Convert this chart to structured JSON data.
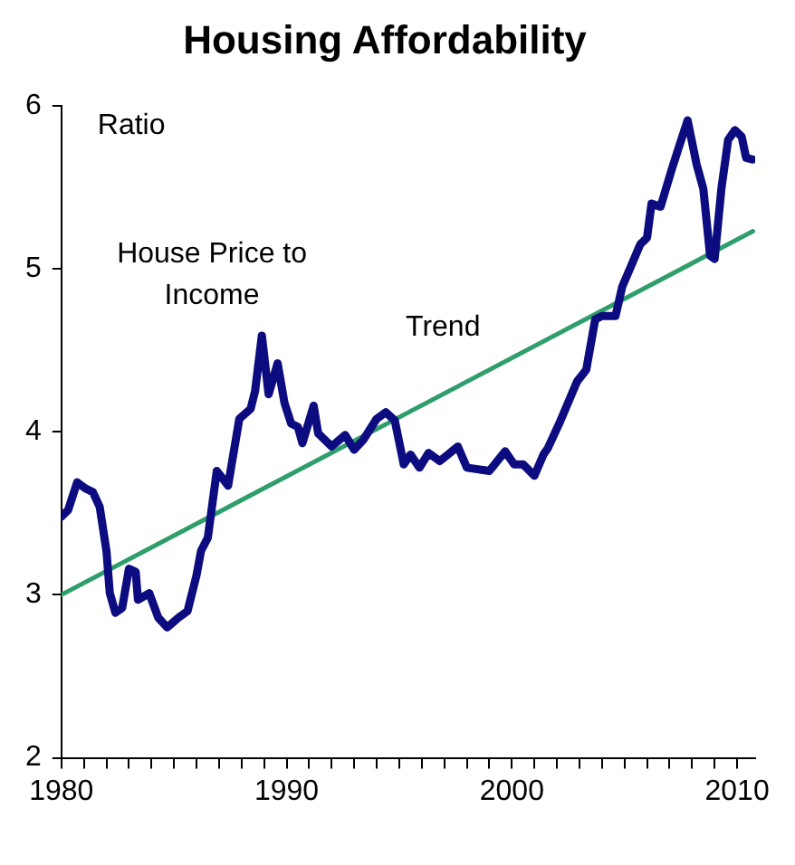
{
  "chart_data": {
    "type": "line",
    "title": "Housing Affordability",
    "ylabel": "Ratio",
    "xlim": [
      1980,
      2010.8
    ],
    "xticks": [
      1980,
      {
        "value": 1981,
        "label": null
      },
      {
        "value": 1982,
        "label": null
      },
      {
        "value": 1983,
        "label": null
      },
      {
        "value": 1984,
        "label": null
      },
      {
        "value": 1985,
        "label": null
      },
      {
        "value": 1986,
        "label": null
      },
      {
        "value": 1987,
        "label": null
      },
      {
        "value": 1988,
        "label": null
      },
      {
        "value": 1989,
        "label": null
      },
      1990,
      {
        "value": 1991,
        "label": null
      },
      {
        "value": 1992,
        "label": null
      },
      {
        "value": 1993,
        "label": null
      },
      {
        "value": 1994,
        "label": null
      },
      {
        "value": 1995,
        "label": null
      },
      {
        "value": 1996,
        "label": null
      },
      {
        "value": 1997,
        "label": null
      },
      {
        "value": 1998,
        "label": null
      },
      {
        "value": 1999,
        "label": null
      },
      2000,
      {
        "value": 2001,
        "label": null
      },
      {
        "value": 2002,
        "label": null
      },
      {
        "value": 2003,
        "label": null
      },
      {
        "value": 2004,
        "label": null
      },
      {
        "value": 2005,
        "label": null
      },
      {
        "value": 2006,
        "label": null
      },
      {
        "value": 2007,
        "label": null
      },
      {
        "value": 2008,
        "label": null
      },
      {
        "value": 2009,
        "label": null
      },
      2010
    ],
    "ylim": [
      2,
      6
    ],
    "yticks": [
      2,
      3,
      4,
      5,
      6
    ],
    "grid": false,
    "legend": false,
    "marker": "none",
    "series": [
      {
        "name": "House Price to Income",
        "color": "#0c0c80",
        "x": [
          1980.0,
          1980.3,
          1980.7,
          1981.1,
          1981.4,
          1981.7,
          1982.0,
          1982.15,
          1982.4,
          1982.7,
          1983.0,
          1983.3,
          1983.4,
          1983.9,
          1984.3,
          1984.7,
          1985.2,
          1985.6,
          1986.0,
          1986.2,
          1986.5,
          1986.9,
          1987.4,
          1987.9,
          1988.4,
          1988.6,
          1988.9,
          1989.2,
          1989.6,
          1989.9,
          1990.2,
          1990.5,
          1990.7,
          1991.2,
          1991.4,
          1992.0,
          1992.6,
          1993.0,
          1993.4,
          1994.0,
          1994.4,
          1994.8,
          1995.2,
          1995.5,
          1995.9,
          1996.3,
          1996.8,
          1997.6,
          1998.0,
          1999.0,
          1999.7,
          2000.1,
          2000.5,
          2001.0,
          2001.4,
          2001.6,
          2002.1,
          2002.5,
          2002.9,
          2003.3,
          2003.7,
          2004.0,
          2004.6,
          2004.9,
          2005.3,
          2005.7,
          2006.0,
          2006.2,
          2006.6,
          2007.1,
          2007.4,
          2007.8,
          2008.2,
          2008.5,
          2008.8,
          2009.0,
          2009.3,
          2009.6,
          2009.9,
          2010.2,
          2010.4,
          2010.7
        ],
        "values": [
          3.48,
          3.52,
          3.69,
          3.65,
          3.63,
          3.54,
          3.27,
          3.01,
          2.89,
          2.92,
          3.16,
          3.14,
          2.97,
          3.01,
          2.86,
          2.8,
          2.86,
          2.9,
          3.12,
          3.27,
          3.35,
          3.76,
          3.67,
          4.08,
          4.14,
          4.25,
          4.59,
          4.23,
          4.42,
          4.18,
          4.05,
          4.03,
          3.93,
          4.16,
          3.99,
          3.91,
          3.98,
          3.89,
          3.95,
          4.08,
          4.12,
          4.07,
          3.8,
          3.86,
          3.78,
          3.87,
          3.82,
          3.91,
          3.78,
          3.76,
          3.88,
          3.8,
          3.8,
          3.73,
          3.86,
          3.9,
          4.05,
          4.18,
          4.31,
          4.38,
          4.69,
          4.71,
          4.71,
          4.89,
          5.02,
          5.15,
          5.19,
          5.4,
          5.38,
          5.61,
          5.74,
          5.91,
          5.64,
          5.49,
          5.08,
          5.06,
          5.49,
          5.79,
          5.85,
          5.81,
          5.68,
          5.67
        ]
      },
      {
        "name": "Trend",
        "color": "#2e9e6a",
        "x": [
          1980,
          2010.7
        ],
        "values": [
          3.0,
          5.23
        ]
      }
    ]
  }
}
